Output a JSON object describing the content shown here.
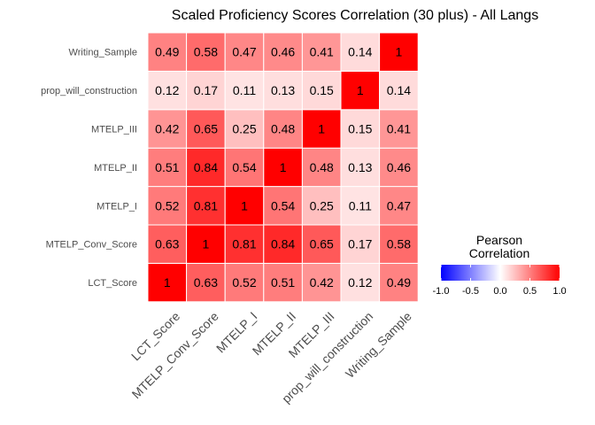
{
  "chart_data": {
    "type": "heatmap",
    "title": "Scaled Proficiency Scores Correlation (30 plus) - All Langs",
    "xlabel": "",
    "ylabel": "",
    "x_categories": [
      "LCT_Score",
      "MTELP_Conv_Score",
      "MTELP_I",
      "MTELP_II",
      "MTELP_III",
      "prop_will_construction",
      "Writing_Sample"
    ],
    "y_categories": [
      "LCT_Score",
      "MTELP_Conv_Score",
      "MTELP_I",
      "MTELP_II",
      "MTELP_III",
      "prop_will_construction",
      "Writing_Sample"
    ],
    "values": [
      [
        1,
        0.63,
        0.52,
        0.51,
        0.42,
        0.12,
        0.49
      ],
      [
        0.63,
        1,
        0.81,
        0.84,
        0.65,
        0.17,
        0.58
      ],
      [
        0.52,
        0.81,
        1,
        0.54,
        0.25,
        0.11,
        0.47
      ],
      [
        0.51,
        0.84,
        0.54,
        1,
        0.48,
        0.13,
        0.46
      ],
      [
        0.42,
        0.65,
        0.25,
        0.48,
        1,
        0.15,
        0.41
      ],
      [
        0.12,
        0.17,
        0.11,
        0.13,
        0.15,
        1,
        0.14
      ],
      [
        0.49,
        0.58,
        0.47,
        0.46,
        0.41,
        0.14,
        1
      ]
    ],
    "legend": {
      "title_line1": "Pearson",
      "title_line2": "Correlation",
      "ticks": [
        "-1.0",
        "-0.5",
        "0.0",
        "0.5",
        "1.0"
      ],
      "tick_values": [
        -1,
        -0.5,
        0,
        0.5,
        1
      ],
      "limits": [
        -1,
        1
      ],
      "low_color": "#0000ff",
      "mid_color": "#ffffff",
      "high_color": "#ff0000",
      "placement": "right"
    }
  }
}
